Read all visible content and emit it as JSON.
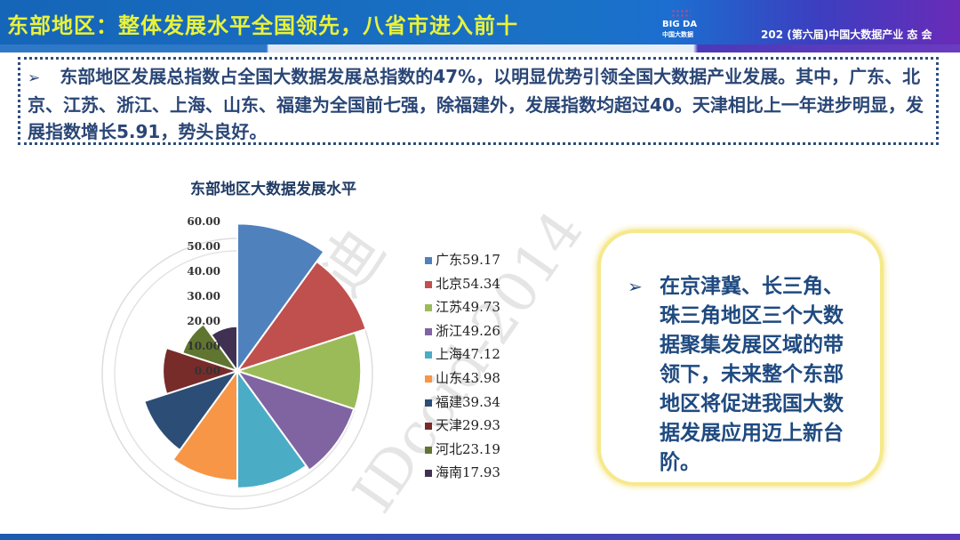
{
  "header": {
    "title": "东部地区：整体发展水平全国领先，八省市进入前十",
    "logo_text": "BIG DA",
    "logo_sub": "中国大数据",
    "event": "202 (第六届)中国大数据产业 态 会"
  },
  "intro": {
    "bullet": "➢",
    "text": "东部地区发展总指数占全国大数据发展总指数的47%，以明显优势引领全国大数据产业发展。其中，广东、北京、江苏、浙江、上海、山东、福建为全国前七强，除福建外，发展指数均超过40。天津相比上一年进步明显，发展指数增长5.91，势头良好。"
  },
  "note": {
    "bullet": "➢",
    "text": "在京津冀、长三角、珠三角地区三个大数据聚集发展区域的带领下，未来整个东部地区将促进我国大数据发展应用迈上新台阶。"
  },
  "watermark": {
    "text1": "赛迪",
    "text2": "IDccid-2014"
  },
  "chart_data": {
    "type": "polar-area",
    "title": "东部地区大数据发展水平",
    "categories": [
      "广东",
      "北京",
      "江苏",
      "浙江",
      "上海",
      "山东",
      "福建",
      "天津",
      "河北",
      "海南"
    ],
    "values": [
      59.17,
      54.34,
      49.73,
      49.26,
      47.12,
      43.98,
      39.34,
      29.93,
      23.19,
      17.93
    ],
    "legend_labels": [
      "广东59.17",
      "北京54.34",
      "江苏49.73",
      "浙江49.26",
      "上海47.12",
      "山东43.98",
      "福建39.34",
      "天津29.93",
      "河北23.19",
      "海南17.93"
    ],
    "colors": [
      "#4f81bd",
      "#c0504d",
      "#9bbb59",
      "#8064a2",
      "#4bacc6",
      "#f79646",
      "#2c4d75",
      "#772c2a",
      "#5f7530",
      "#403152"
    ],
    "radial_ticks": [
      "0.00",
      "10.00",
      "20.00",
      "30.00",
      "40.00",
      "50.00",
      "60.00"
    ],
    "rlim": [
      0,
      60
    ],
    "legend_position": "right"
  }
}
